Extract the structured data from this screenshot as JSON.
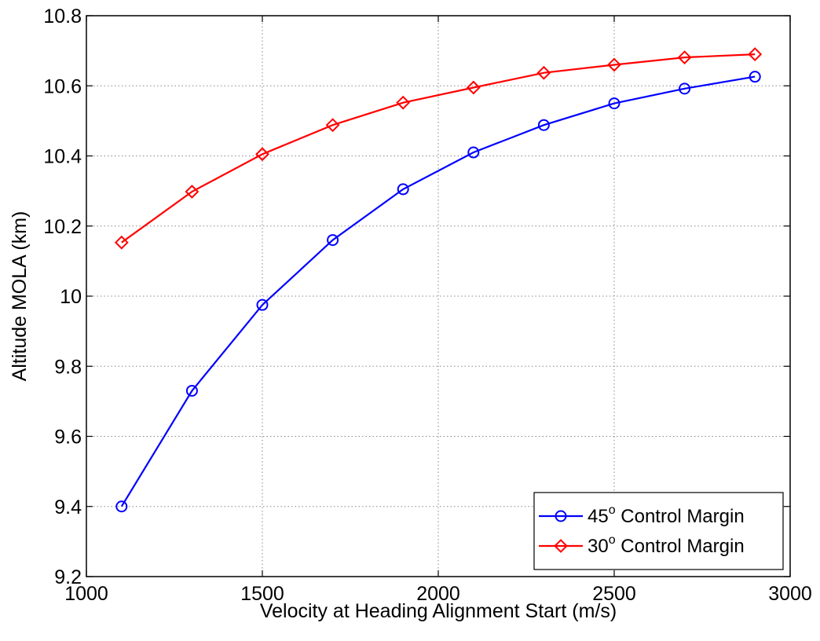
{
  "chart_data": {
    "type": "line",
    "title": "",
    "xlabel": "Velocity at Heading Alignment Start (m/s)",
    "ylabel": "Altitude MOLA (km)",
    "xlim": [
      1000,
      3000
    ],
    "ylim": [
      9.2,
      10.8
    ],
    "x_ticks": [
      1000,
      1500,
      2000,
      2500,
      3000
    ],
    "y_ticks": [
      9.2,
      9.4,
      9.6,
      9.8,
      10,
      10.2,
      10.4,
      10.6,
      10.8
    ],
    "x_tick_labels": [
      "1000",
      "1500",
      "2000",
      "2500",
      "3000"
    ],
    "y_tick_labels": [
      "9.2",
      "9.4",
      "9.6",
      "9.8",
      "10",
      "10.2",
      "10.4",
      "10.6",
      "10.8"
    ],
    "grid": true,
    "legend_position": "bottom-right",
    "x": [
      1100,
      1300,
      1500,
      1700,
      1900,
      2100,
      2300,
      2500,
      2700,
      2900
    ],
    "series": [
      {
        "name_prefix": "45",
        "name_sup": "o",
        "name_suffix": " Control Margin",
        "color": "#0000ff",
        "marker": "circle",
        "values": [
          9.4,
          9.73,
          9.975,
          10.16,
          10.305,
          10.41,
          10.488,
          10.55,
          10.592,
          10.626
        ]
      },
      {
        "name_prefix": "30",
        "name_sup": "o",
        "name_suffix": " Control Margin",
        "color": "#ff0000",
        "marker": "diamond",
        "values": [
          10.153,
          10.298,
          10.405,
          10.488,
          10.552,
          10.595,
          10.637,
          10.66,
          10.681,
          10.69
        ]
      }
    ]
  }
}
